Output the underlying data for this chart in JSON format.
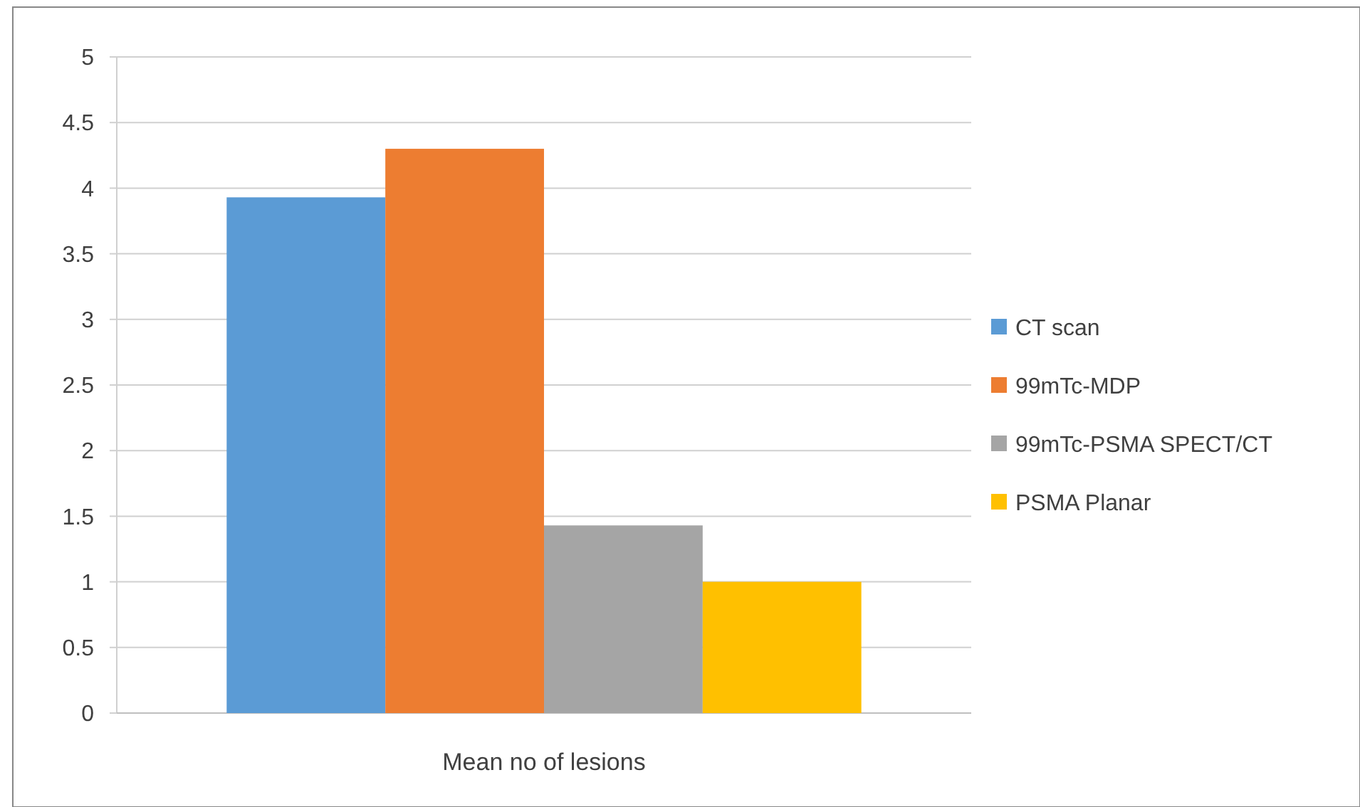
{
  "chart_data": {
    "type": "bar",
    "categories": [
      "Mean no of lesions"
    ],
    "series": [
      {
        "name": "CT scan",
        "color": "#5b9bd5",
        "values": [
          3.93
        ]
      },
      {
        "name": "99mTc-MDP",
        "color": "#ed7d31",
        "values": [
          4.3
        ]
      },
      {
        "name": "99mTc-PSMA SPECT/CT",
        "color": "#a5a5a5",
        "values": [
          1.43
        ]
      },
      {
        "name": "PSMA Planar",
        "color": "#ffc000",
        "values": [
          1.0
        ]
      }
    ],
    "ylim": [
      0,
      5
    ],
    "yticks": [
      0,
      0.5,
      1,
      1.5,
      2,
      2.5,
      3,
      3.5,
      4,
      4.5,
      5
    ],
    "grid": "y",
    "legend": "right"
  }
}
